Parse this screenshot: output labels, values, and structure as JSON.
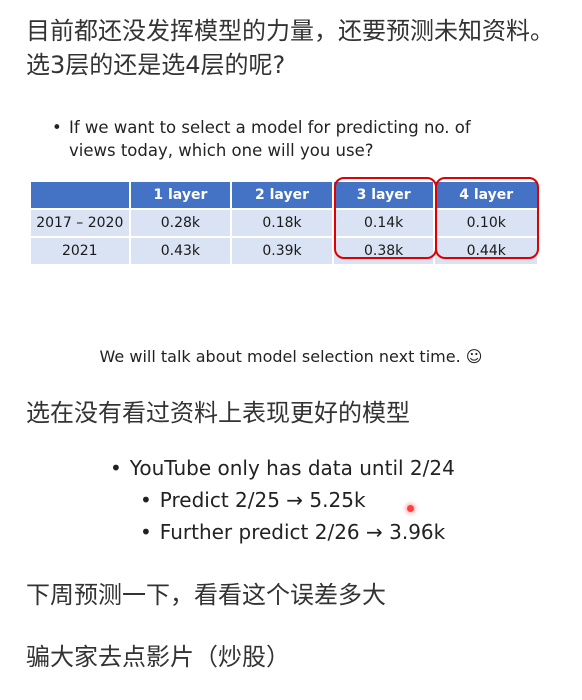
{
  "title": "目前都还没发挥模型的力量，还要预测未知资料。选3层的还是选4层的呢?",
  "question": {
    "bullet": "•",
    "text": "If we want to select a model for predicting no. of views today, which one will you use?"
  },
  "table": {
    "columns": [
      "",
      "1 layer",
      "2 layer",
      "3 layer",
      "4 layer"
    ],
    "rows": [
      {
        "period": "2017 – 2020",
        "values": [
          "0.28k",
          "0.18k",
          "0.14k",
          "0.10k"
        ]
      },
      {
        "period": "2021",
        "values": [
          "0.43k",
          "0.39k",
          "0.38k",
          "0.44k"
        ]
      }
    ],
    "header_color": "#4472c4",
    "cell_color": "#dae3f3",
    "highlight_color": "#e00000"
  },
  "note": "We will talk about model selection next time. ☺",
  "select_heading": "选在没有看过资料上表现更好的模型",
  "bullets": [
    "YouTube only has data until 2/24",
    "Predict 2/25 → 5.25k",
    "Further predict 2/26 → 3.96k"
  ],
  "bullet_symbol": "•",
  "predict_heading": "下周预测一下，看看这个误差多大",
  "trick_heading": "骗大家去点影片（炒股）"
}
